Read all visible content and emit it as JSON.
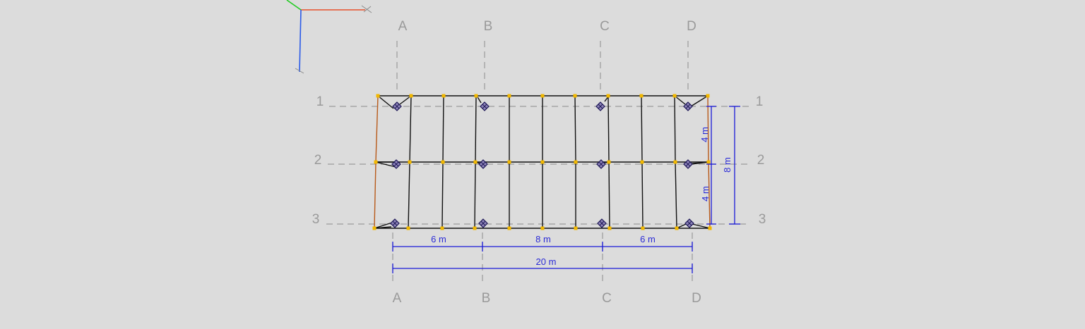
{
  "colors": {
    "background": "#dcdcdc",
    "grid": "#9a9a9a",
    "beam": "#111111",
    "edge_beam": "#b85a1a",
    "dimension": "#1a1ad8",
    "node": "#f2b800",
    "support_fill": "#8e84b8",
    "axis_x": "#e8502a",
    "axis_y": "#22cc22",
    "axis_z": "#2a5ae8"
  },
  "gridlines": {
    "columns": [
      "A",
      "B",
      "C",
      "D"
    ],
    "rows": [
      "1",
      "2",
      "3"
    ]
  },
  "dimensions": {
    "spans": [
      "6 m",
      "8 m",
      "6 m"
    ],
    "total_width": "20 m",
    "bays": [
      "4 m",
      "4 m"
    ],
    "total_depth": "8 m"
  },
  "icons": {
    "axis_gizmo": "axis-triad-icon",
    "support": "pin-support-icon"
  }
}
